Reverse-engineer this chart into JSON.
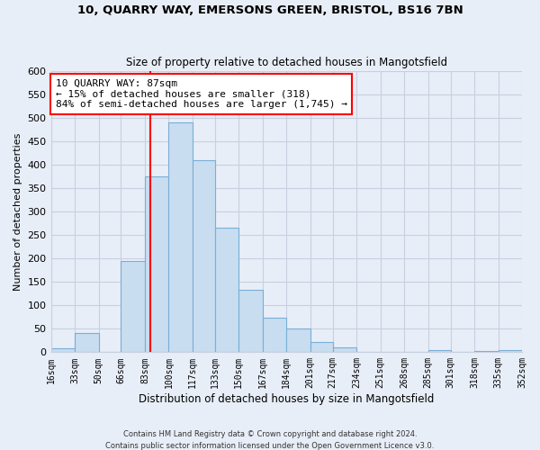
{
  "title": "10, QUARRY WAY, EMERSONS GREEN, BRISTOL, BS16 7BN",
  "subtitle": "Size of property relative to detached houses in Mangotsfield",
  "xlabel": "Distribution of detached houses by size in Mangotsfield",
  "ylabel": "Number of detached properties",
  "footer1": "Contains HM Land Registry data © Crown copyright and database right 2024.",
  "footer2": "Contains public sector information licensed under the Open Government Licence v3.0.",
  "bin_edges": [
    16,
    33,
    50,
    66,
    83,
    100,
    117,
    133,
    150,
    167,
    184,
    201,
    217,
    234,
    251,
    268,
    285,
    301,
    318,
    335,
    352
  ],
  "bar_heights": [
    8,
    40,
    0,
    195,
    375,
    490,
    410,
    265,
    133,
    73,
    50,
    22,
    10,
    0,
    0,
    0,
    5,
    0,
    3,
    4
  ],
  "bar_color": "#c8ddf0",
  "bar_edgecolor": "#7aaed6",
  "vline_x": 87,
  "vline_color": "red",
  "annotation_line1": "10 QUARRY WAY: 87sqm",
  "annotation_line2": "← 15% of detached houses are smaller (318)",
  "annotation_line3": "84% of semi-detached houses are larger (1,745) →",
  "annotation_box_edgecolor": "red",
  "annotation_box_facecolor": "white",
  "tick_labels": [
    "16sqm",
    "33sqm",
    "50sqm",
    "66sqm",
    "83sqm",
    "100sqm",
    "117sqm",
    "133sqm",
    "150sqm",
    "167sqm",
    "184sqm",
    "201sqm",
    "217sqm",
    "234sqm",
    "251sqm",
    "268sqm",
    "285sqm",
    "301sqm",
    "318sqm",
    "335sqm",
    "352sqm"
  ],
  "ylim": [
    0,
    600
  ],
  "yticks": [
    0,
    50,
    100,
    150,
    200,
    250,
    300,
    350,
    400,
    450,
    500,
    550,
    600
  ],
  "background_color": "#e8eef8",
  "grid_color": "#c8d0e0"
}
